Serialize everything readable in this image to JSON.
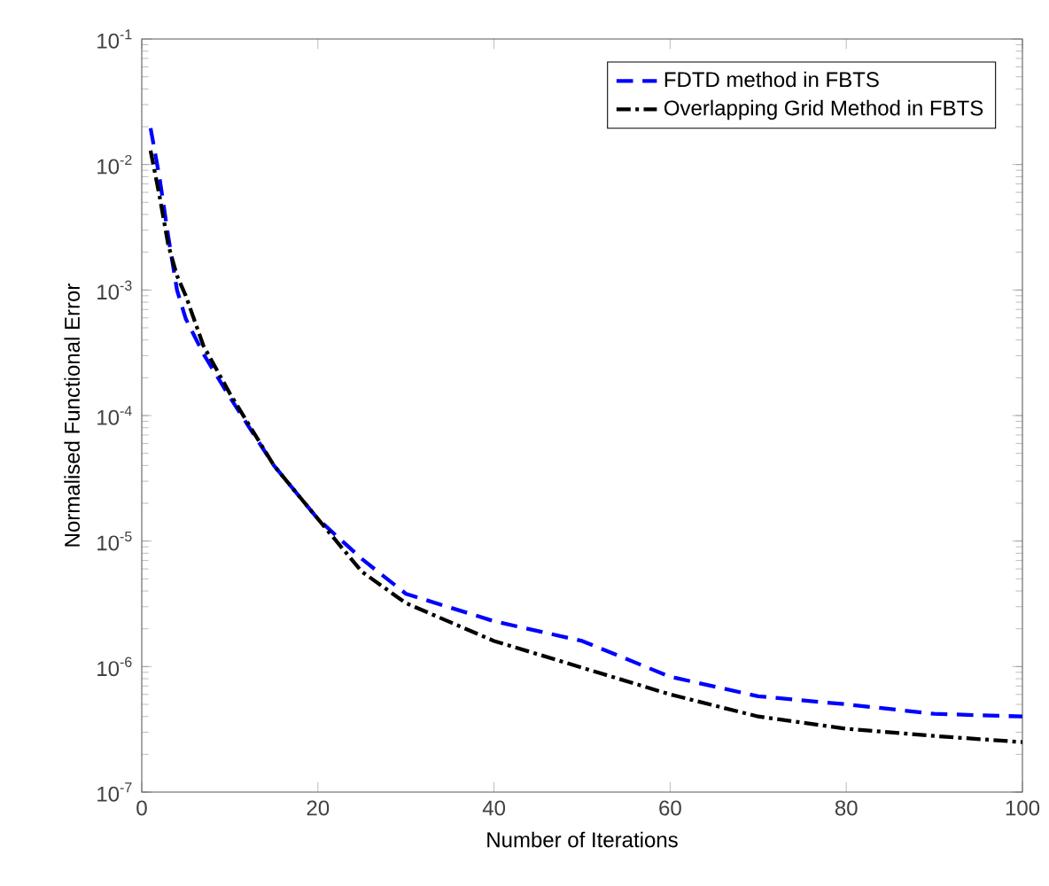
{
  "chart_data": {
    "type": "line",
    "xlabel": "Number of Iterations",
    "ylabel": "Normalised Functional Error",
    "log": "y",
    "grid": false,
    "legend": "top right",
    "marker": "none",
    "xlim": [
      0,
      100
    ],
    "xticks": [
      0,
      20,
      40,
      60,
      80,
      100
    ],
    "ylim": [
      1e-07,
      0.1
    ],
    "yticks": [
      {
        "value": 1e-07,
        "label": "10$^{-7}$"
      },
      {
        "value": 1e-06,
        "label": "10$^{-6}$"
      },
      {
        "value": 1e-05,
        "label": "10$^{-5}$"
      },
      {
        "value": 0.0001,
        "label": "10$^{-4}$"
      },
      {
        "value": 0.001,
        "label": "10$^{-3}$"
      },
      {
        "value": 0.01,
        "label": "10$^{-2}$"
      },
      {
        "value": 0.1,
        "label": "10$^{-1}$"
      }
    ],
    "x": [
      1,
      2,
      3,
      4,
      5,
      7,
      10,
      15,
      20,
      25,
      30,
      40,
      50,
      60,
      70,
      80,
      90,
      100
    ],
    "series": [
      {
        "name": "FDTD method in FBTS",
        "color": "#0000ff",
        "line_style": "dashed",
        "values": [
          0.0195,
          0.008,
          0.0027,
          0.001,
          0.00059,
          0.00031,
          0.00014,
          4e-05,
          1.5e-05,
          7.2e-06,
          3.8e-06,
          2.3e-06,
          1.6e-06,
          8.3e-07,
          5.8e-07,
          5e-07,
          4.2e-07,
          4e-07
        ]
      },
      {
        "name": "Overlapping Grid Method in FBTS",
        "color": "#000000",
        "line_style": "dashdot",
        "values": [
          0.0129,
          0.0057,
          0.0023,
          0.0013,
          0.0009,
          0.00036,
          0.00015,
          4e-05,
          1.5e-05,
          5.7e-06,
          3.2e-06,
          1.6e-06,
          9.8e-07,
          6e-07,
          4e-07,
          3.2e-07,
          2.8e-07,
          2.5e-07
        ]
      }
    ]
  }
}
